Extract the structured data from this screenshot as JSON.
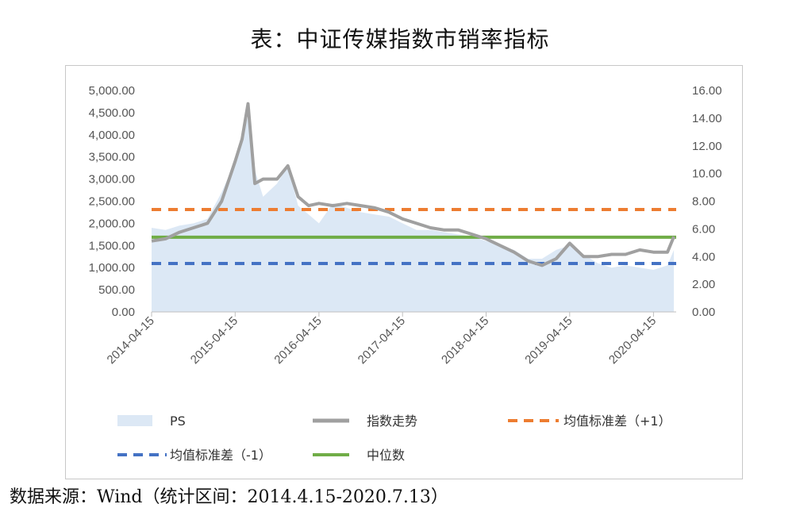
{
  "title": "表：中证传媒指数市销率指标",
  "source": "数据来源：Wind（统计区间：2014.4.15-2020.7.13）",
  "colors": {
    "ps_fill": "#dce8f5",
    "index_line": "#a0a0a0",
    "plus1": "#ed7d31",
    "minus1": "#4472c4",
    "median": "#70ad47"
  },
  "chart_data": {
    "type": "area",
    "x_ticks": [
      "2014-04-15",
      "2015-04-15",
      "2016-04-15",
      "2017-04-15",
      "2018-04-15",
      "2019-04-15",
      "2020-04-15"
    ],
    "y_left": {
      "min": 0,
      "max": 5000,
      "ticks": [
        "0.00",
        "500.00",
        "1,000.00",
        "1,500.00",
        "2,000.00",
        "2,500.00",
        "3,000.00",
        "3,500.00",
        "4,000.00",
        "4,500.00",
        "5,000.00"
      ]
    },
    "y_right": {
      "min": 0,
      "max": 16,
      "ticks": [
        "0.00",
        "2.00",
        "4.00",
        "6.00",
        "8.00",
        "10.00",
        "12.00",
        "14.00",
        "16.00"
      ]
    },
    "legend": [
      "PS",
      "指数走势",
      "均值标准差（+1）",
      "均值标准差（-1）",
      "中位数"
    ],
    "x": [
      "2014-04-15",
      "2014-06-15",
      "2014-08-15",
      "2014-10-15",
      "2014-12-15",
      "2015-02-15",
      "2015-04-15",
      "2015-05-15",
      "2015-06-10",
      "2015-07-10",
      "2015-08-15",
      "2015-10-15",
      "2015-12-01",
      "2016-01-15",
      "2016-03-01",
      "2016-04-15",
      "2016-06-15",
      "2016-08-15",
      "2016-10-15",
      "2016-12-15",
      "2017-02-15",
      "2017-04-15",
      "2017-06-15",
      "2017-08-15",
      "2017-10-15",
      "2017-12-15",
      "2018-02-15",
      "2018-04-15",
      "2018-06-15",
      "2018-08-15",
      "2018-10-15",
      "2018-12-15",
      "2019-02-15",
      "2019-04-15",
      "2019-06-15",
      "2019-08-15",
      "2019-10-15",
      "2019-12-15",
      "2020-02-15",
      "2020-04-15",
      "2020-06-15",
      "2020-07-13"
    ],
    "series": [
      {
        "name": "PS",
        "axis": "left",
        "values": [
          1900,
          1850,
          1950,
          2000,
          2100,
          2700,
          3400,
          4000,
          4400,
          3200,
          2600,
          2900,
          3300,
          2400,
          2200,
          2000,
          2450,
          2350,
          2250,
          2200,
          2150,
          2000,
          1850,
          1850,
          1800,
          1750,
          1700,
          1600,
          1500,
          1400,
          1200,
          1200,
          1400,
          1500,
          1300,
          1100,
          1000,
          1050,
          1000,
          950,
          1050,
          1400
        ]
      },
      {
        "name": "指数走势",
        "axis": "left",
        "values": [
          1600,
          1650,
          1800,
          1900,
          2000,
          2500,
          3400,
          3900,
          4700,
          2900,
          3000,
          3000,
          3300,
          2600,
          2400,
          2450,
          2400,
          2450,
          2400,
          2350,
          2250,
          2100,
          2000,
          1900,
          1850,
          1850,
          1750,
          1650,
          1500,
          1350,
          1150,
          1050,
          1200,
          1550,
          1250,
          1250,
          1300,
          1300,
          1400,
          1350,
          1350,
          1700
        ]
      }
    ],
    "reference_lines": [
      {
        "name": "均值标准差（+1）",
        "axis": "right",
        "value": 7.4,
        "style": "dashed"
      },
      {
        "name": "均值标准差（-1）",
        "axis": "right",
        "value": 3.5,
        "style": "dashed"
      },
      {
        "name": "中位数",
        "axis": "right",
        "value": 5.4,
        "style": "solid"
      }
    ]
  }
}
